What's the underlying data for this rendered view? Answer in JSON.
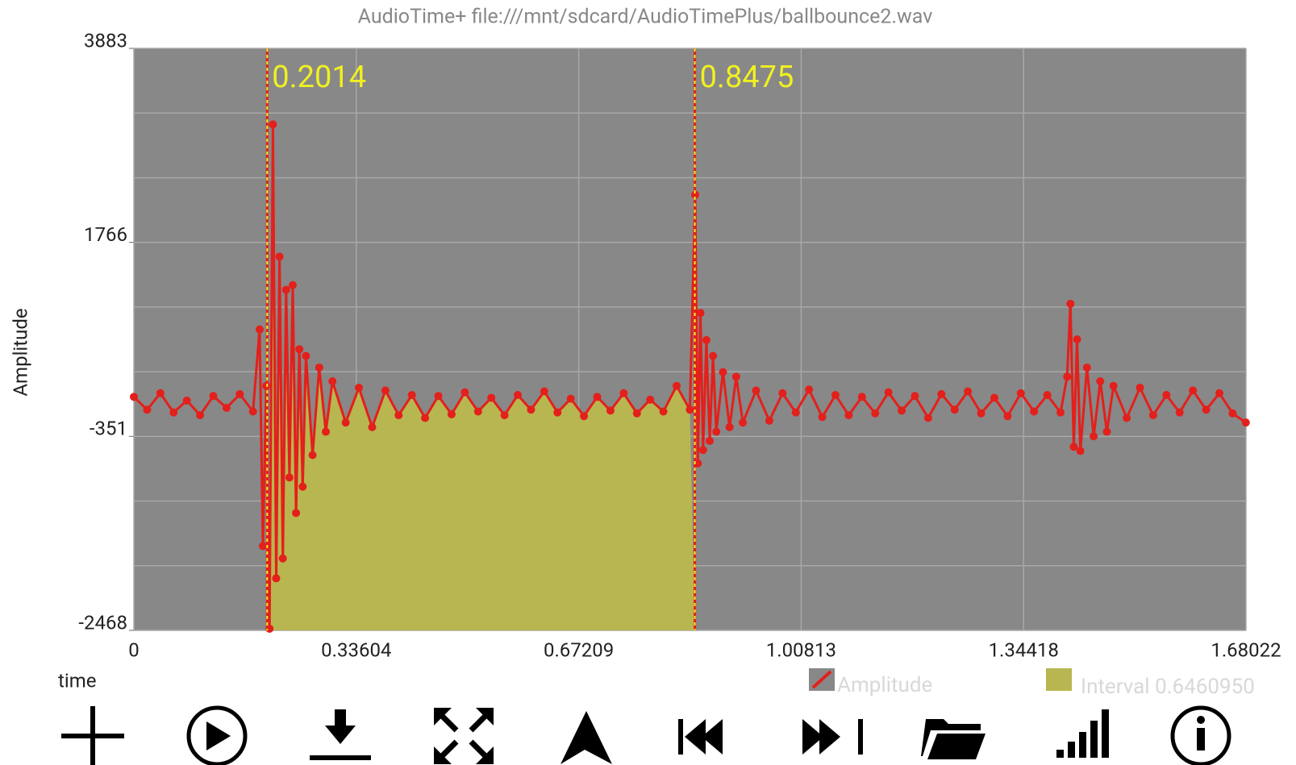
{
  "chart_data": {
    "type": "line",
    "title": "AudioTime+ file:///mnt/sdcard/AudioTimePlus/ballbounce2.wav",
    "ylabel": "Amplitude",
    "xlabel": "time",
    "xlim": [
      0,
      1.68022
    ],
    "xticks": [
      0,
      0.33604,
      0.67209,
      1.00813,
      1.34418,
      1.68022
    ],
    "ylim": [
      -2468,
      3883
    ],
    "yticks": [
      -2468,
      -351,
      1766,
      3883
    ],
    "yminor": [
      -1762.3,
      -1056.7,
      354.7,
      1060.3,
      2471.7,
      3177.3
    ],
    "grid": true,
    "background": "#888888",
    "cursors": [
      0.2014,
      0.8475
    ],
    "x": [
      0,
      0.02,
      0.04,
      0.06,
      0.08,
      0.1,
      0.12,
      0.14,
      0.16,
      0.18,
      0.19,
      0.195,
      0.2,
      0.205,
      0.21,
      0.215,
      0.22,
      0.225,
      0.23,
      0.235,
      0.24,
      0.245,
      0.25,
      0.255,
      0.26,
      0.27,
      0.28,
      0.29,
      0.3,
      0.32,
      0.34,
      0.36,
      0.38,
      0.4,
      0.42,
      0.44,
      0.46,
      0.48,
      0.5,
      0.52,
      0.54,
      0.56,
      0.58,
      0.6,
      0.62,
      0.64,
      0.66,
      0.68,
      0.7,
      0.72,
      0.74,
      0.76,
      0.78,
      0.8,
      0.82,
      0.84,
      0.848,
      0.852,
      0.856,
      0.86,
      0.865,
      0.87,
      0.875,
      0.88,
      0.89,
      0.9,
      0.91,
      0.92,
      0.94,
      0.96,
      0.98,
      1.0,
      1.02,
      1.04,
      1.06,
      1.08,
      1.1,
      1.12,
      1.14,
      1.16,
      1.18,
      1.2,
      1.22,
      1.24,
      1.26,
      1.28,
      1.3,
      1.32,
      1.34,
      1.36,
      1.38,
      1.4,
      1.41,
      1.415,
      1.42,
      1.425,
      1.43,
      1.44,
      1.45,
      1.46,
      1.47,
      1.48,
      1.5,
      1.52,
      1.54,
      1.56,
      1.58,
      1.6,
      1.62,
      1.64,
      1.66,
      1.68
    ],
    "series": [
      {
        "name": "Amplitude",
        "color": "#e3201b",
        "values": [
          80,
          -60,
          120,
          -90,
          40,
          -120,
          90,
          -40,
          110,
          -80,
          816,
          -1548,
          200,
          -2450,
          3053,
          -1900,
          1610,
          -1683,
          1249,
          -800,
          1300,
          -1187,
          600,
          -900,
          527,
          -555,
          400,
          -300,
          250,
          -200,
          180,
          -250,
          150,
          -120,
          100,
          -150,
          90,
          -110,
          130,
          -80,
          70,
          -120,
          100,
          -60,
          140,
          -90,
          60,
          -130,
          80,
          -70,
          120,
          -100,
          50,
          -80,
          200,
          -60,
          2286,
          -646,
          996,
          -500,
          700,
          -400,
          527,
          -300,
          350,
          -250,
          300,
          -200,
          150,
          -180,
          120,
          -90,
          160,
          -140,
          100,
          -120,
          80,
          -100,
          130,
          -70,
          90,
          -150,
          110,
          -60,
          140,
          -100,
          70,
          -130,
          120,
          -80,
          100,
          -90,
          300,
          1096,
          -465,
          708,
          -510,
          400,
          -350,
          250,
          -300,
          200,
          -150,
          180,
          -120,
          100,
          -90,
          150,
          -60,
          120,
          -100,
          -200
        ]
      },
      {
        "name": "Interval 0.6460950",
        "color": "#b8b650"
      }
    ]
  }
}
